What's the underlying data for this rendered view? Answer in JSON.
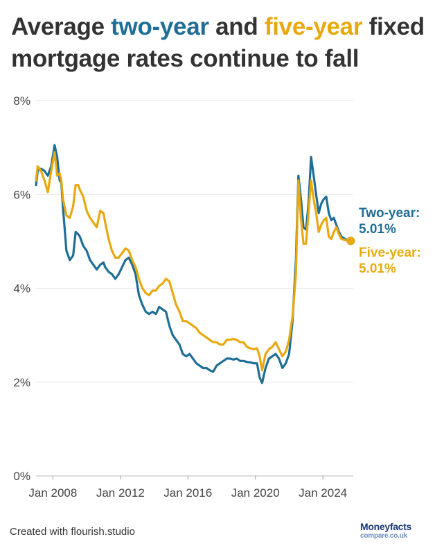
{
  "title": {
    "part1": "Average ",
    "two_year": "two-year",
    "part2": " and ",
    "five_year": "five-year",
    "part3": " fixed mortgage rates continue to fall"
  },
  "footer": {
    "credit": "Created with flourish.studio",
    "logo_line1": "Moneyfacts",
    "logo_line2": "compare.co.uk"
  },
  "colors": {
    "two_year": "#1f6e96",
    "five_year": "#e8a90e",
    "grid": "#e6e6e6",
    "axis_text": "#444444"
  },
  "chart_data": {
    "type": "line",
    "title": "Average two-year and five-year fixed mortgage rates continue to fall",
    "xlabel": "",
    "ylabel": "",
    "ylim": [
      0,
      8
    ],
    "xlim": [
      2007.0,
      2025.8
    ],
    "yticks": [
      0,
      2,
      4,
      6,
      8
    ],
    "ytick_labels": [
      "0%",
      "2%",
      "4%",
      "6%",
      "8%"
    ],
    "xticks": [
      2008,
      2012,
      2016,
      2020,
      2024
    ],
    "xtick_labels": [
      "Jan 2008",
      "Jan 2012",
      "Jan 2016",
      "Jan 2020",
      "Jan 2024"
    ],
    "grid": "horizontal",
    "series": [
      {
        "name": "Two-year",
        "color": "#1f6e96",
        "end_label": "5.01%",
        "x": [
          2007.0,
          2007.1,
          2007.3,
          2007.5,
          2007.7,
          2007.9,
          2008.1,
          2008.25,
          2008.4,
          2008.5,
          2008.6,
          2008.8,
          2009.0,
          2009.2,
          2009.35,
          2009.5,
          2009.6,
          2009.8,
          2010.0,
          2010.2,
          2010.4,
          2010.6,
          2010.8,
          2011.0,
          2011.1,
          2011.3,
          2011.5,
          2011.7,
          2011.9,
          2012.1,
          2012.3,
          2012.5,
          2012.7,
          2012.9,
          2013.1,
          2013.3,
          2013.5,
          2013.7,
          2013.9,
          2014.1,
          2014.3,
          2014.5,
          2014.7,
          2014.9,
          2015.1,
          2015.3,
          2015.5,
          2015.7,
          2015.9,
          2016.1,
          2016.3,
          2016.5,
          2016.7,
          2016.9,
          2017.1,
          2017.3,
          2017.5,
          2017.7,
          2017.9,
          2018.1,
          2018.3,
          2018.5,
          2018.7,
          2018.9,
          2019.1,
          2019.3,
          2019.5,
          2019.7,
          2019.9,
          2020.1,
          2020.25,
          2020.4,
          2020.6,
          2020.8,
          2021.0,
          2021.2,
          2021.4,
          2021.6,
          2021.8,
          2022.0,
          2022.2,
          2022.4,
          2022.55,
          2022.7,
          2022.85,
          2023.0,
          2023.15,
          2023.3,
          2023.45,
          2023.6,
          2023.75,
          2023.9,
          2024.05,
          2024.2,
          2024.35,
          2024.5,
          2024.65,
          2024.8,
          2024.95,
          2025.1,
          2025.3,
          2025.5,
          2025.65
        ],
        "y": [
          6.2,
          6.5,
          6.55,
          6.5,
          6.4,
          6.6,
          7.05,
          6.8,
          6.3,
          6.25,
          5.7,
          4.8,
          4.6,
          4.7,
          5.2,
          5.15,
          5.1,
          4.9,
          4.8,
          4.6,
          4.5,
          4.4,
          4.5,
          4.55,
          4.45,
          4.35,
          4.3,
          4.2,
          4.3,
          4.45,
          4.6,
          4.65,
          4.5,
          4.3,
          3.85,
          3.65,
          3.5,
          3.45,
          3.5,
          3.45,
          3.6,
          3.55,
          3.5,
          3.2,
          3.0,
          2.9,
          2.8,
          2.6,
          2.55,
          2.6,
          2.5,
          2.4,
          2.35,
          2.3,
          2.3,
          2.25,
          2.22,
          2.35,
          2.4,
          2.45,
          2.5,
          2.5,
          2.48,
          2.5,
          2.45,
          2.45,
          2.43,
          2.42,
          2.4,
          2.4,
          2.1,
          1.98,
          2.3,
          2.5,
          2.55,
          2.6,
          2.5,
          2.3,
          2.4,
          2.6,
          3.3,
          4.6,
          6.4,
          5.9,
          5.3,
          5.25,
          5.8,
          6.8,
          6.4,
          6.0,
          5.6,
          5.8,
          5.9,
          5.95,
          5.6,
          5.45,
          5.5,
          5.35,
          5.2,
          5.1,
          5.05,
          5.02,
          5.01
        ]
      },
      {
        "name": "Five-year",
        "color": "#e8a90e",
        "end_label": "5.01%",
        "x": [
          2007.0,
          2007.1,
          2007.3,
          2007.5,
          2007.7,
          2007.9,
          2008.1,
          2008.25,
          2008.4,
          2008.5,
          2008.6,
          2008.8,
          2009.0,
          2009.2,
          2009.35,
          2009.5,
          2009.6,
          2009.8,
          2010.0,
          2010.2,
          2010.4,
          2010.6,
          2010.8,
          2011.0,
          2011.1,
          2011.3,
          2011.5,
          2011.7,
          2011.9,
          2012.1,
          2012.3,
          2012.5,
          2012.7,
          2012.9,
          2013.1,
          2013.3,
          2013.5,
          2013.7,
          2013.9,
          2014.1,
          2014.3,
          2014.5,
          2014.7,
          2014.9,
          2015.1,
          2015.3,
          2015.5,
          2015.7,
          2015.9,
          2016.1,
          2016.3,
          2016.5,
          2016.7,
          2016.9,
          2017.1,
          2017.3,
          2017.5,
          2017.7,
          2017.9,
          2018.1,
          2018.3,
          2018.5,
          2018.7,
          2018.9,
          2019.1,
          2019.3,
          2019.5,
          2019.7,
          2019.9,
          2020.1,
          2020.25,
          2020.4,
          2020.6,
          2020.8,
          2021.0,
          2021.2,
          2021.4,
          2021.6,
          2021.8,
          2022.0,
          2022.2,
          2022.4,
          2022.55,
          2022.7,
          2022.85,
          2023.0,
          2023.15,
          2023.3,
          2023.45,
          2023.6,
          2023.75,
          2023.9,
          2024.05,
          2024.2,
          2024.35,
          2024.5,
          2024.65,
          2024.8,
          2024.95,
          2025.1,
          2025.3,
          2025.5,
          2025.65
        ],
        "y": [
          6.3,
          6.6,
          6.5,
          6.3,
          6.05,
          6.5,
          6.9,
          6.4,
          6.45,
          6.3,
          5.9,
          5.55,
          5.5,
          5.75,
          6.2,
          6.2,
          6.1,
          5.95,
          5.65,
          5.5,
          5.4,
          5.3,
          5.65,
          5.6,
          5.4,
          5.05,
          4.8,
          4.65,
          4.65,
          4.75,
          4.85,
          4.8,
          4.6,
          4.45,
          4.2,
          4.0,
          3.9,
          3.85,
          3.95,
          3.95,
          4.05,
          4.1,
          4.2,
          4.15,
          3.9,
          3.65,
          3.5,
          3.3,
          3.3,
          3.25,
          3.2,
          3.15,
          3.05,
          3.0,
          2.95,
          2.9,
          2.85,
          2.85,
          2.8,
          2.8,
          2.9,
          2.9,
          2.92,
          2.9,
          2.85,
          2.85,
          2.75,
          2.72,
          2.7,
          2.72,
          2.55,
          2.25,
          2.6,
          2.7,
          2.75,
          2.85,
          2.7,
          2.55,
          2.65,
          2.9,
          3.4,
          4.3,
          6.3,
          5.5,
          4.95,
          4.95,
          5.6,
          6.3,
          5.9,
          5.6,
          5.2,
          5.35,
          5.45,
          5.5,
          5.1,
          5.05,
          5.2,
          5.3,
          5.15,
          5.05,
          5.03,
          5.01,
          5.01
        ]
      }
    ]
  }
}
